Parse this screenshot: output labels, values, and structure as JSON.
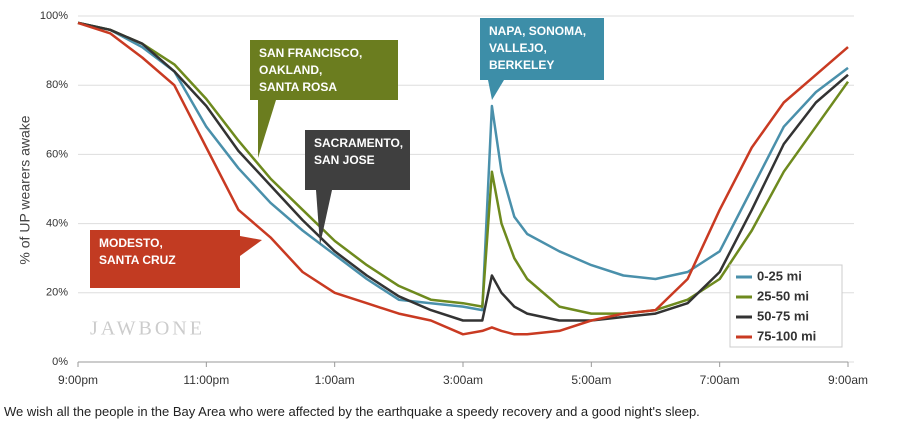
{
  "chart_data": {
    "type": "line",
    "ylabel": "% of UP wearers awake",
    "watermark": "JAWBONE",
    "caption": "We wish all the people in the Bay Area who were affected by the earthquake a speedy recovery and a good night's sleep.",
    "x": [
      0,
      0.5,
      1,
      1.5,
      2,
      2.5,
      3,
      3.5,
      4,
      4.5,
      5,
      5.5,
      6,
      6.3,
      6.45,
      6.6,
      6.8,
      7,
      7.5,
      8,
      8.5,
      9,
      9.5,
      10,
      10.5,
      11,
      11.5,
      12
    ],
    "xlim": [
      0,
      12
    ],
    "xticks": [
      {
        "value": 0,
        "label": "9:00pm"
      },
      {
        "value": 2,
        "label": "11:00pm"
      },
      {
        "value": 4,
        "label": "1:00am"
      },
      {
        "value": 6,
        "label": "3:00am"
      },
      {
        "value": 8,
        "label": "5:00am"
      },
      {
        "value": 10,
        "label": "7:00am"
      },
      {
        "value": 12,
        "label": "9:00am"
      }
    ],
    "ylim": [
      0,
      100
    ],
    "yticks": [
      {
        "value": 0,
        "label": "0%"
      },
      {
        "value": 20,
        "label": "20%"
      },
      {
        "value": 40,
        "label": "40%"
      },
      {
        "value": 60,
        "label": "60%"
      },
      {
        "value": 80,
        "label": "80%"
      },
      {
        "value": 100,
        "label": "100%"
      }
    ],
    "grid": true,
    "legend": "lower right",
    "series": [
      {
        "name": "0-25 mi",
        "color": "#4a90ab",
        "values": [
          98,
          96,
          91,
          84,
          68,
          56,
          46,
          38,
          31,
          24,
          18,
          17,
          16,
          15,
          74,
          55,
          42,
          37,
          32,
          28,
          25,
          24,
          26,
          32,
          50,
          68,
          78,
          85
        ]
      },
      {
        "name": "25-50 mi",
        "color": "#6e8a1e",
        "values": [
          98,
          96,
          92,
          86,
          76,
          64,
          53,
          44,
          35,
          28,
          22,
          18,
          17,
          16,
          55,
          40,
          30,
          24,
          16,
          14,
          14,
          15,
          18,
          24,
          38,
          55,
          68,
          81
        ]
      },
      {
        "name": "50-75 mi",
        "color": "#333333",
        "values": [
          98,
          96,
          92,
          84,
          74,
          61,
          51,
          41,
          32,
          25,
          19,
          15,
          12,
          12,
          25,
          20,
          16,
          14,
          12,
          12,
          13,
          14,
          17,
          26,
          44,
          63,
          75,
          83
        ]
      },
      {
        "name": "75-100 mi",
        "color": "#c93a22",
        "values": [
          98,
          95,
          88,
          80,
          62,
          44,
          36,
          26,
          20,
          17,
          14,
          12,
          8,
          9,
          10,
          9,
          8,
          8,
          9,
          12,
          14,
          15,
          24,
          44,
          62,
          75,
          83,
          91
        ]
      }
    ],
    "annotations": [
      {
        "lines": [
          "SAN FRANCISCO,",
          "OAKLAND,",
          "SANTA ROSA"
        ],
        "color": "#6b7d1f"
      },
      {
        "lines": [
          "SACRAMENTO,",
          "SAN JOSE"
        ],
        "color": "#3f3f3f"
      },
      {
        "lines": [
          "NAPA, SONOMA,",
          "VALLEJO,",
          "BERKELEY"
        ],
        "color": "#3d8ea8"
      },
      {
        "lines": [
          "MODESTO,",
          "SANTA CRUZ"
        ],
        "color": "#c23b22"
      }
    ]
  }
}
